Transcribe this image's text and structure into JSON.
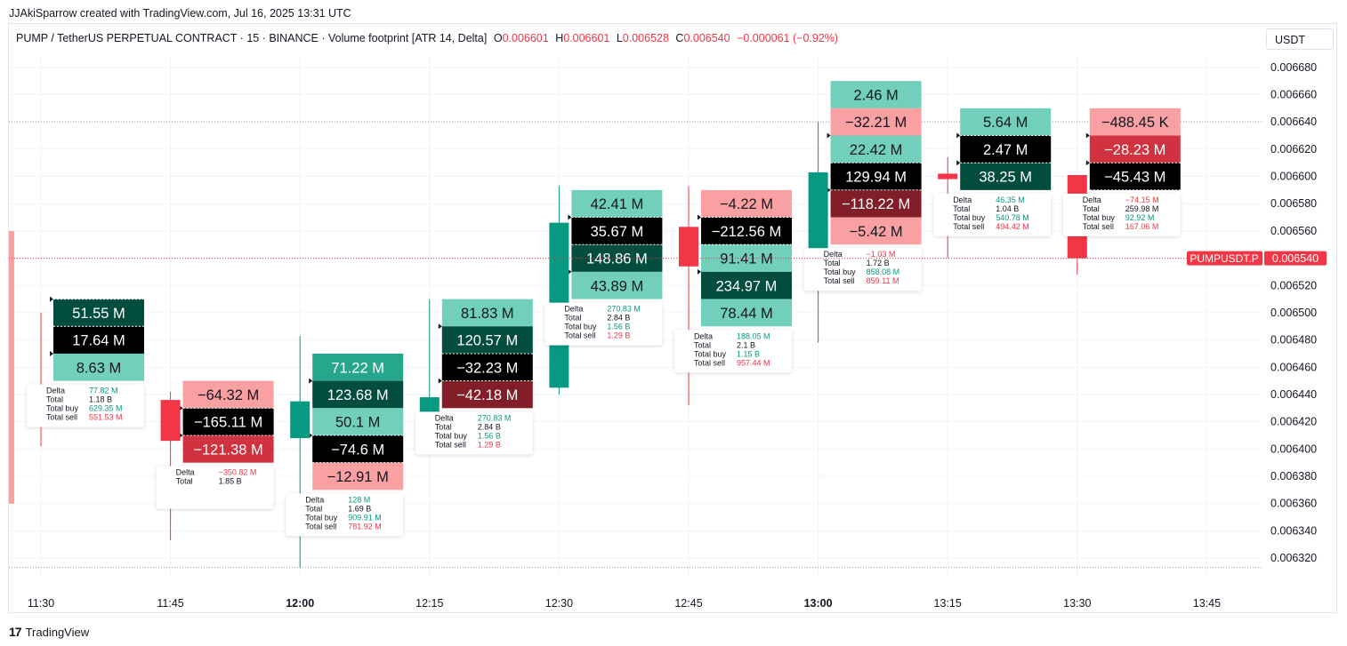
{
  "header": {
    "credit": "JJAkiSparrow created with TradingView.com, Jul 16, 2025 13:31 UTC"
  },
  "legend": {
    "symbol": "PUMP / TetherUS PERPETUAL CONTRACT · 15 · BINANCE · Volume footprint [ATR 14, Delta]",
    "o_label": "O",
    "o": "0.006601",
    "h_label": "H",
    "h": "0.006601",
    "l_label": "L",
    "l": "0.006528",
    "c_label": "C",
    "c": "0.006540",
    "change": "−0.000061 (−0.92%)"
  },
  "currency_button": "USDT",
  "footer": {
    "logo": "17",
    "brand": "TradingView"
  },
  "colors": {
    "up": "#089981",
    "down": "#f23645",
    "buy_light": "#72cfbc",
    "buy_mid": "#26a68c",
    "buy_dark": "#034d3f",
    "sell_light": "#f9a0a3",
    "sell_mid": "#d1323f",
    "sell_dark": "#811e28",
    "neutral": "#000000"
  },
  "chart_data": {
    "type": "footprint",
    "price_axis": {
      "ticks": [
        "0.006680",
        "0.006660",
        "0.006640",
        "0.006620",
        "0.006600",
        "0.006580",
        "0.006560",
        "0.006540",
        "0.006520",
        "0.006500",
        "0.006480",
        "0.006460",
        "0.006440",
        "0.006420",
        "0.006400",
        "0.006380",
        "0.006360",
        "0.006340",
        "0.006320"
      ],
      "ylim": [
        0.006307,
        0.006689
      ],
      "row_size": 2e-05
    },
    "time_axis": {
      "labels": [
        "11:30",
        "11:45",
        "12:00",
        "12:15",
        "12:30",
        "12:45",
        "13:00",
        "13:15",
        "13:30",
        "13:45"
      ],
      "bold": [
        "12:00",
        "13:00"
      ]
    },
    "last_price": {
      "symbol_label": "PUMPUSDT.P",
      "value_label": "0.006540",
      "value": 0.00654
    },
    "reference_lines": [
      0.00664,
      0.006313
    ],
    "bars": [
      {
        "time": "11:30",
        "open": 0.006425,
        "high": 0.0065,
        "low": 0.006402,
        "close": 0.00642,
        "cells": [
          {
            "price": 0.0065,
            "text": "51.55 M",
            "style": "buy_dark"
          },
          {
            "price": 0.00648,
            "text": "17.64 M",
            "style": "neutral"
          },
          {
            "price": 0.00646,
            "text": "8.63 M",
            "style": "buy_light"
          }
        ],
        "poc": 0.0065,
        "va_marks": [
          0.0065,
          0.00646
        ],
        "summary": {
          "delta": "77.82 M",
          "total": "1.18 B",
          "buy": "629.35 M",
          "sell": "551.53 M"
        }
      },
      {
        "time": "11:45",
        "open": 0.006436,
        "high": 0.006442,
        "low": 0.006333,
        "close": 0.006406,
        "cells": [
          {
            "price": 0.00644,
            "text": "−64.32 M",
            "style": "sell_light"
          },
          {
            "price": 0.00642,
            "text": "−165.11 M",
            "style": "neutral"
          },
          {
            "price": 0.0064,
            "text": "−121.38 M",
            "style": "sell_mid"
          }
        ],
        "poc": 0.00642,
        "va_marks": [
          0.00642,
          0.0064
        ],
        "summary": {
          "delta": "−350.82 M",
          "total": "1.85 B",
          "buy": "",
          "sell": ""
        }
      },
      {
        "time": "12:00",
        "open": 0.006408,
        "high": 0.006483,
        "low": 0.006313,
        "close": 0.006435,
        "cells": [
          {
            "price": 0.00646,
            "text": "71.22 M",
            "style": "buy_mid"
          },
          {
            "price": 0.00644,
            "text": "123.68 M",
            "style": "buy_dark"
          },
          {
            "price": 0.00642,
            "text": "50.1 M",
            "style": "buy_light"
          },
          {
            "price": 0.0064,
            "text": "−74.6 M",
            "style": "neutral"
          },
          {
            "price": 0.00638,
            "text": "−12.91 M",
            "style": "sell_light"
          }
        ],
        "poc": 0.0064,
        "va_marks": [
          0.00644,
          0.0064
        ],
        "summary": {
          "delta": "128 M",
          "total": "1.69 B",
          "buy": "909.91 M",
          "sell": "781.92 M"
        }
      },
      {
        "time": "12:15",
        "open": 0.00642,
        "high": 0.00651,
        "low": 0.0064,
        "close": 0.006438,
        "cells": [
          {
            "price": 0.0065,
            "text": "81.83 M",
            "style": "buy_light"
          },
          {
            "price": 0.00648,
            "text": "120.57 M",
            "style": "buy_dark"
          },
          {
            "price": 0.00646,
            "text": "−32.23 M",
            "style": "neutral"
          },
          {
            "price": 0.00644,
            "text": "−42.18 M",
            "style": "sell_dark"
          }
        ],
        "poc": 0.00646,
        "va_marks": [
          0.00648,
          0.00644
        ],
        "summary": {
          "delta": "270.83 M",
          "total": "2.84 B",
          "buy": "1.56 B",
          "sell": "1.29 B"
        }
      },
      {
        "time": "12:30",
        "open": 0.006445,
        "high": 0.006593,
        "low": 0.00644,
        "close": 0.006566,
        "cells": [
          {
            "price": 0.00658,
            "text": "42.41 M",
            "style": "buy_light"
          },
          {
            "price": 0.00656,
            "text": "35.67 M",
            "style": "neutral"
          },
          {
            "price": 0.00654,
            "text": "148.86 M",
            "style": "buy_dark"
          },
          {
            "price": 0.00652,
            "text": "43.89 M",
            "style": "buy_light"
          }
        ],
        "poc": 0.00656,
        "va_marks": [
          0.00656,
          0.00652
        ],
        "summary": {
          "delta": "270.83 M",
          "total": "2.84 B",
          "buy": "1.56 B",
          "sell": "1.29 B"
        }
      },
      {
        "time": "12:45",
        "open": 0.006563,
        "high": 0.006593,
        "low": 0.006432,
        "close": 0.006534,
        "cells": [
          {
            "price": 0.00658,
            "text": "−4.22 M",
            "style": "sell_light"
          },
          {
            "price": 0.00656,
            "text": "−212.56 M",
            "style": "neutral"
          },
          {
            "price": 0.00654,
            "text": "91.41 M",
            "style": "buy_light"
          },
          {
            "price": 0.00652,
            "text": "234.97 M",
            "style": "buy_dark"
          },
          {
            "price": 0.0065,
            "text": "78.44 M",
            "style": "buy_light"
          }
        ],
        "poc": 0.00656,
        "va_marks": [
          0.00656,
          0.00652
        ],
        "summary": {
          "delta": "188.05 M",
          "total": "2.1 B",
          "buy": "1.15 B",
          "sell": "957.44 M"
        }
      },
      {
        "time": "13:00",
        "open": 0.006533,
        "high": 0.00664,
        "low": 0.006478,
        "close": 0.006603,
        "cells": [
          {
            "price": 0.00666,
            "text": "2.46 M",
            "style": "buy_light"
          },
          {
            "price": 0.00664,
            "text": "−32.21 M",
            "style": "sell_light"
          },
          {
            "price": 0.00662,
            "text": "22.42 M",
            "style": "buy_light"
          },
          {
            "price": 0.0066,
            "text": "129.94 M",
            "style": "neutral"
          },
          {
            "price": 0.00658,
            "text": "−118.22 M",
            "style": "sell_dark"
          },
          {
            "price": 0.00656,
            "text": "−5.42 M",
            "style": "sell_light"
          }
        ],
        "poc": 0.0066,
        "va_marks": [
          0.00662,
          0.00658
        ],
        "summary": {
          "delta": "−1.03 M",
          "total": "1.72 B",
          "buy": "858.08 M",
          "sell": "859.11 M"
        }
      },
      {
        "time": "13:15",
        "open": 0.006602,
        "high": 0.006614,
        "low": 0.00654,
        "close": 0.006598,
        "cells": [
          {
            "price": 0.00664,
            "text": "5.64 M",
            "style": "buy_light"
          },
          {
            "price": 0.00662,
            "text": "2.47 M",
            "style": "neutral"
          },
          {
            "price": 0.0066,
            "text": "38.25 M",
            "style": "buy_dark"
          }
        ],
        "poc": 0.00662,
        "va_marks": [
          0.00662,
          0.0066
        ],
        "summary": {
          "delta": "46.35 M",
          "total": "1.04 B",
          "buy": "540.78 M",
          "sell": "494.42 M"
        }
      },
      {
        "time": "13:30",
        "open": 0.006601,
        "high": 0.006601,
        "low": 0.006528,
        "close": 0.00654,
        "cells": [
          {
            "price": 0.00664,
            "text": "−488.45 K",
            "style": "sell_light"
          },
          {
            "price": 0.00662,
            "text": "−28.23 M",
            "style": "sell_mid"
          },
          {
            "price": 0.0066,
            "text": "−45.43 M",
            "style": "neutral"
          }
        ],
        "poc": 0.0066,
        "va_marks": [
          0.00662,
          0.0066
        ],
        "summary": {
          "delta": "−74.15 M",
          "total": "259.98 M",
          "buy": "92.92 M",
          "sell": "167.06 M"
        }
      }
    ],
    "summary_labels": {
      "delta": "Delta",
      "total": "Total",
      "buy": "Total buy",
      "sell": "Total sell"
    }
  }
}
